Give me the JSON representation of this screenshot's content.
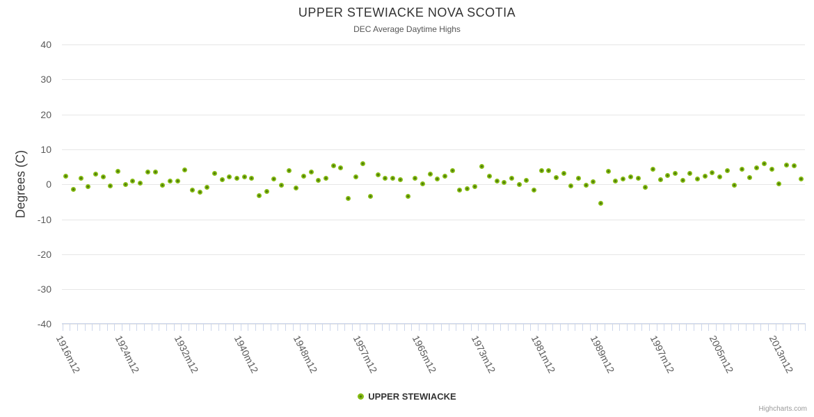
{
  "header": {
    "title": "UPPER STEWIACKE NOVA SCOTIA",
    "subtitle": "DEC Average Daytime Highs"
  },
  "legend": {
    "label": "UPPER STEWIACKE"
  },
  "credits": {
    "label": "Highcharts.com"
  },
  "chart_data": {
    "type": "scatter",
    "series_name": "UPPER STEWIACKE",
    "title": "UPPER STEWIACKE NOVA SCOTIA",
    "subtitle": "DEC Average Daytime Highs",
    "xlabel": "",
    "ylabel": "Degrees (C)",
    "ylim": [
      -40,
      40
    ],
    "ytick_step": 10,
    "ytick_labels": [
      "40",
      "30",
      "20",
      "10",
      "0",
      "-10",
      "-20",
      "-30",
      "-40"
    ],
    "grid": true,
    "legend_position": "bottom-center",
    "xtick_label_every": 8,
    "xtick_label_start_index": 1,
    "xtick_labels_shown": [
      "1916m12",
      "1924m12",
      "1932m12",
      "1940m12",
      "1948m12",
      "1957m12",
      "1965m12",
      "1973m12",
      "1981m12",
      "1989m12",
      "1997m12",
      "2005m12",
      "2013m12"
    ],
    "x": [
      "1915m12",
      "1916m12",
      "1917m12",
      "1918m12",
      "1919m12",
      "1920m12",
      "1921m12",
      "1922m12",
      "1923m12",
      "1924m12",
      "1925m12",
      "1926m12",
      "1927m12",
      "1928m12",
      "1929m12",
      "1930m12",
      "1931m12",
      "1932m12",
      "1933m12",
      "1934m12",
      "1935m12",
      "1936m12",
      "1937m12",
      "1938m12",
      "1939m12",
      "1940m12",
      "1941m12",
      "1942m12",
      "1943m12",
      "1944m12",
      "1945m12",
      "1946m12",
      "1947m12",
      "1948m12",
      "1949m12",
      "1951m12",
      "1952m12",
      "1953m12",
      "1954m12",
      "1955m12",
      "1956m12",
      "1957m12",
      "1958m12",
      "1959m12",
      "1960m12",
      "1961m12",
      "1962m12",
      "1963m12",
      "1964m12",
      "1965m12",
      "1966m12",
      "1967m12",
      "1968m12",
      "1969m12",
      "1970m12",
      "1971m12",
      "1972m12",
      "1973m12",
      "1974m12",
      "1975m12",
      "1976m12",
      "1977m12",
      "1978m12",
      "1979m12",
      "1980m12",
      "1981m12",
      "1982m12",
      "1983m12",
      "1984m12",
      "1985m12",
      "1986m12",
      "1987m12",
      "1988m12",
      "1989m12",
      "1990m12",
      "1991m12",
      "1992m12",
      "1993m12",
      "1994m12",
      "1995m12",
      "1996m12",
      "1997m12",
      "1998m12",
      "1999m12",
      "2000m12",
      "2001m12",
      "2002m12",
      "2003m12",
      "2004m12",
      "2005m12",
      "2006m12",
      "2007m12",
      "2008m12",
      "2009m12",
      "2010m12",
      "2011m12",
      "2012m12",
      "2013m12",
      "2014m12",
      "2015m12"
    ],
    "values": [
      2.3,
      -1.5,
      1.8,
      -0.7,
      3.0,
      2.1,
      -0.4,
      3.8,
      -0.1,
      1.0,
      0.3,
      3.5,
      3.6,
      -0.2,
      1.0,
      0.9,
      4.1,
      -1.7,
      -2.2,
      -0.9,
      3.1,
      1.3,
      2.2,
      1.8,
      2.1,
      1.7,
      -3.3,
      -2.0,
      1.5,
      -0.3,
      4.0,
      -1.0,
      2.4,
      3.6,
      1.1,
      1.8,
      5.3,
      4.7,
      -4.0,
      2.2,
      5.9,
      -3.5,
      2.7,
      1.7,
      1.8,
      1.4,
      -3.5,
      1.7,
      0.2,
      3.0,
      1.5,
      2.3,
      4.0,
      -1.6,
      -1.3,
      -0.7,
      5.2,
      2.3,
      1.0,
      0.5,
      1.8,
      0.0,
      1.2,
      -1.6,
      4.0,
      4.0,
      2.0,
      3.1,
      -0.5,
      1.8,
      -0.3,
      0.8,
      -5.4,
      3.8,
      1.0,
      1.5,
      2.2,
      1.8,
      -0.8,
      4.4,
      1.3,
      2.6,
      3.1,
      1.1,
      3.1,
      1.5,
      2.4,
      3.3,
      2.2,
      4.0,
      -0.2,
      4.3,
      2.0,
      4.8,
      6.0,
      4.4,
      0.1,
      5.6,
      5.4,
      1.5
    ],
    "colors": {
      "marker_outer": "#85bb13",
      "marker_inner": "#4e7c0a",
      "grid": "#e6e6e6",
      "axis": "#ccd6eb",
      "tick_label": "#5a5a5a"
    }
  }
}
